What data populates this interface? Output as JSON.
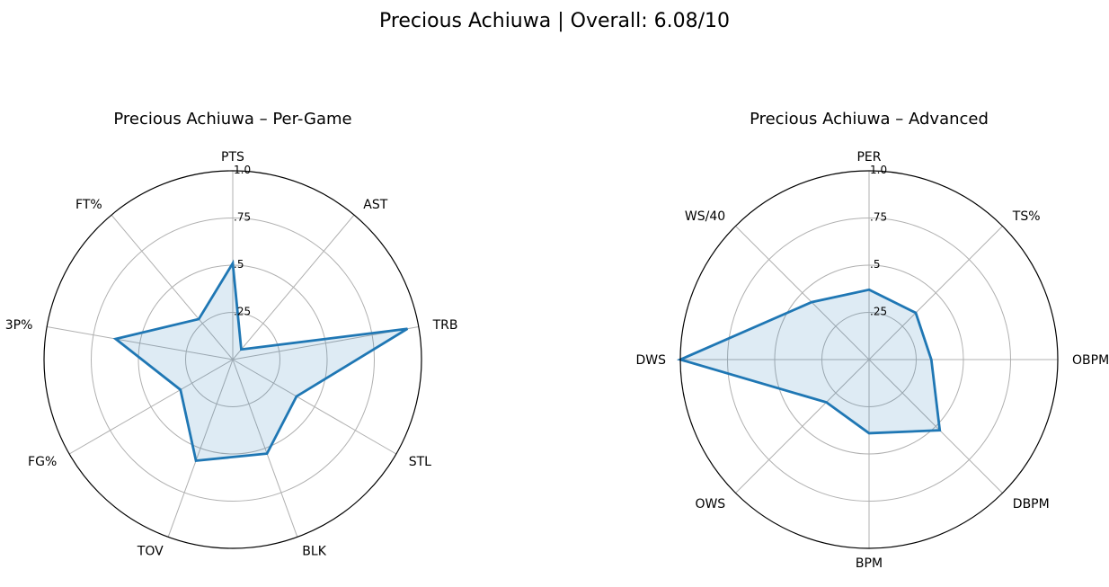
{
  "figure": {
    "suptitle": "Precious Achiuwa | Overall: 6.08/10"
  },
  "chart_data": [
    {
      "type": "radar",
      "title": "Precious Achiuwa – Per-Game",
      "categories": [
        "PTS",
        "AST",
        "TRB",
        "STL",
        "BLK",
        "TOV",
        "FG%",
        "3P%",
        "FT%"
      ],
      "values": [
        0.51,
        0.07,
        0.94,
        0.39,
        0.53,
        0.57,
        0.32,
        0.63,
        0.28
      ],
      "rlim": [
        0,
        1
      ],
      "rticks": [
        0.25,
        0.5,
        0.75,
        1.0
      ],
      "rtick_labels": [
        ".25",
        ".5",
        ".75",
        "1.0"
      ],
      "grid": true,
      "line_color": "#1f77b4",
      "fill_color": "#1f77b4"
    },
    {
      "type": "radar",
      "title": "Precious Achiuwa – Advanced",
      "categories": [
        "PER",
        "TS%",
        "OBPM",
        "DBPM",
        "BPM",
        "OWS",
        "DWS",
        "WS/40"
      ],
      "values": [
        0.37,
        0.35,
        0.33,
        0.53,
        0.39,
        0.32,
        1.0,
        0.43
      ],
      "rlim": [
        0,
        1
      ],
      "rticks": [
        0.25,
        0.5,
        0.75,
        1.0
      ],
      "rtick_labels": [
        ".25",
        ".5",
        ".75",
        "1.0"
      ],
      "grid": true,
      "line_color": "#1f77b4",
      "fill_color": "#1f77b4"
    }
  ]
}
